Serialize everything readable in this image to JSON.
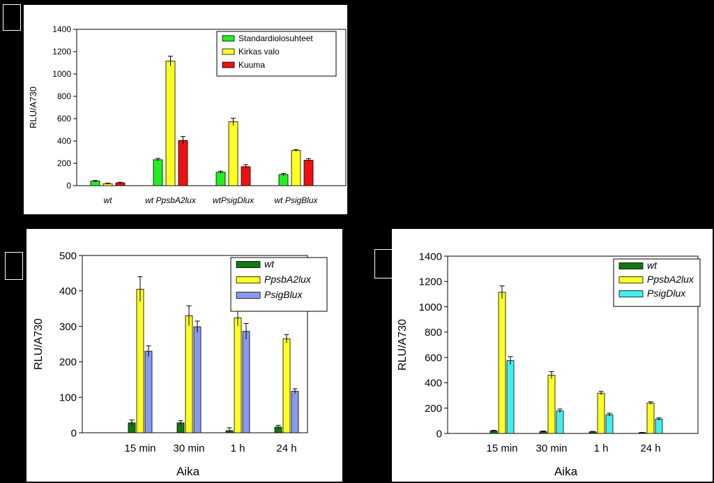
{
  "chart_data": [
    {
      "type": "bar",
      "ylabel": "RLU/A730",
      "xlabel": "",
      "ylim": [
        0,
        1400
      ],
      "yticks": [
        0,
        200,
        400,
        600,
        800,
        1000,
        1200,
        1400
      ],
      "categories": [
        "wt",
        "wt PpsbA2lux",
        "wtPsigDlux",
        "wt PsigBlux"
      ],
      "legend_position": "top-right",
      "series": [
        {
          "name": "Standardiolosuhteet",
          "color": "#22ee22",
          "values": [
            40,
            232,
            120,
            100
          ],
          "errors": [
            6,
            12,
            10,
            8
          ]
        },
        {
          "name": "Kirkas valo",
          "color": "#ffff22",
          "values": [
            18,
            1115,
            572,
            315
          ],
          "errors": [
            5,
            45,
            32,
            8
          ]
        },
        {
          "name": "Kuuma",
          "color": "#ee1111",
          "values": [
            25,
            405,
            170,
            228
          ],
          "errors": [
            5,
            35,
            18,
            14
          ]
        }
      ]
    },
    {
      "type": "bar",
      "ylabel": "RLU/A730",
      "xlabel": "Aika",
      "ylim": [
        0,
        500
      ],
      "yticks": [
        0,
        100,
        200,
        300,
        400,
        500
      ],
      "categories": [
        "15 min",
        "30 min",
        "1 h",
        "24 h"
      ],
      "legend_position": "top-right",
      "series": [
        {
          "name": "wt",
          "color": "#117711",
          "values": [
            28,
            28,
            6,
            16
          ],
          "errors": [
            8,
            6,
            8,
            5
          ]
        },
        {
          "name": "PpsbA2lux",
          "color": "#ffff22",
          "values": [
            405,
            330,
            324,
            265
          ],
          "errors": [
            35,
            28,
            22,
            12
          ]
        },
        {
          "name": "PsigBlux",
          "color": "#8899ee",
          "values": [
            230,
            299,
            286,
            117
          ],
          "errors": [
            15,
            16,
            22,
            7
          ]
        }
      ]
    },
    {
      "type": "bar",
      "ylabel": "RLU/A730",
      "xlabel": "Aika",
      "ylim": [
        0,
        1400
      ],
      "yticks": [
        0,
        200,
        400,
        600,
        800,
        1000,
        1200,
        1400
      ],
      "categories": [
        "15 min",
        "30 min",
        "1 h",
        "24 h"
      ],
      "legend_position": "top-right",
      "series": [
        {
          "name": "wt",
          "color": "#117711",
          "values": [
            20,
            15,
            12,
            6
          ],
          "errors": [
            5,
            4,
            4,
            2
          ]
        },
        {
          "name": "PpsbA2lux",
          "color": "#ffff22",
          "values": [
            1115,
            460,
            318,
            240
          ],
          "errors": [
            50,
            28,
            14,
            10
          ]
        },
        {
          "name": "PsigDlux",
          "color": "#44eeee",
          "values": [
            575,
            178,
            148,
            113
          ],
          "errors": [
            32,
            15,
            12,
            10
          ]
        }
      ]
    }
  ]
}
